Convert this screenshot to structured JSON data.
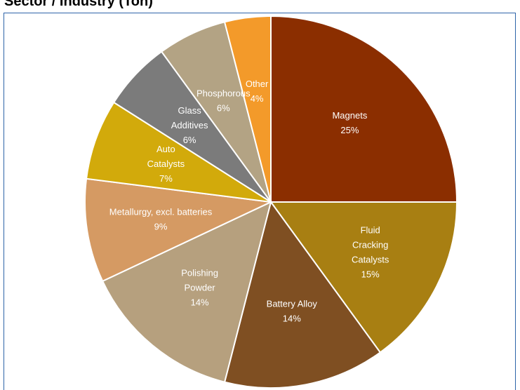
{
  "title": "Sector / Industry (Ton)",
  "chart_data": {
    "type": "pie",
    "title": "Sector / Industry (Ton)",
    "slices": [
      {
        "label": "Magnets",
        "label_lines": [
          "Magnets",
          "25%"
        ],
        "value": 25,
        "percent_text": "25%",
        "color": "#8b2e00"
      },
      {
        "label": "Fluid Cracking Catalysts",
        "label_lines": [
          "Fluid",
          "Cracking",
          "Catalysts",
          "15%"
        ],
        "value": 15,
        "percent_text": "15%",
        "color": "#a87f12"
      },
      {
        "label": "Battery Alloy",
        "label_lines": [
          "Battery Alloy",
          "14%"
        ],
        "value": 14,
        "percent_text": "14%",
        "color": "#7f4f22"
      },
      {
        "label": "Polishing Powder",
        "label_lines": [
          "Polishing",
          "Powder",
          "14%"
        ],
        "value": 14,
        "percent_text": "14%",
        "color": "#b6a07e"
      },
      {
        "label": "Metallurgy, excl. batteries",
        "label_lines": [
          "Metallurgy, excl. batteries",
          "9%"
        ],
        "value": 9,
        "percent_text": "9%",
        "color": "#d59a63"
      },
      {
        "label": "Auto Catalysts",
        "label_lines": [
          "Auto",
          "Catalysts",
          "7%"
        ],
        "value": 7,
        "percent_text": "7%",
        "color": "#d2aa0b"
      },
      {
        "label": "Glass Additives",
        "label_lines": [
          "Glass",
          "Additives",
          "6%"
        ],
        "value": 6,
        "percent_text": "6%",
        "color": "#7b7b7b"
      },
      {
        "label": "Phosphorous",
        "label_lines": [
          "Phosphorous",
          "6%"
        ],
        "value": 6,
        "percent_text": "6%",
        "color": "#b3a384"
      },
      {
        "label": "Other",
        "label_lines": [
          "Other",
          "4%"
        ],
        "value": 4,
        "percent_text": "4%",
        "color": "#f39a2a"
      }
    ]
  }
}
